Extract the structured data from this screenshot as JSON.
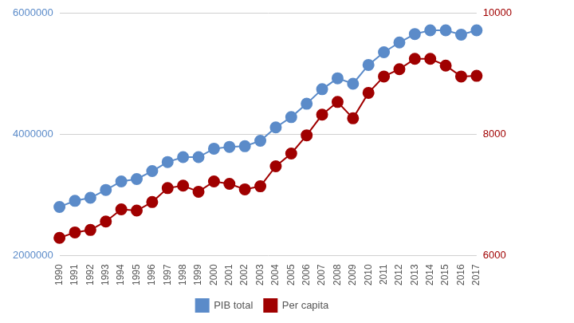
{
  "chart_data": {
    "type": "line",
    "categories": [
      "1990",
      "1991",
      "1992",
      "1993",
      "1994",
      "1995",
      "1996",
      "1997",
      "1998",
      "1999",
      "2000",
      "2001",
      "2002",
      "2003",
      "2004",
      "2005",
      "2006",
      "2007",
      "2008",
      "2009",
      "2010",
      "2011",
      "2012",
      "2013",
      "2014",
      "2015",
      "2016",
      "2017"
    ],
    "series": [
      {
        "name": "PIB total",
        "color": "#5b8bc9",
        "marker": "circle",
        "axis": "y",
        "values": [
          2800000,
          2900000,
          2950000,
          3080000,
          3220000,
          3260000,
          3390000,
          3540000,
          3620000,
          3620000,
          3760000,
          3790000,
          3800000,
          3890000,
          4110000,
          4280000,
          4500000,
          4740000,
          4920000,
          4830000,
          5140000,
          5350000,
          5510000,
          5650000,
          5710000,
          5710000,
          5640000,
          5710000
        ]
      },
      {
        "name": "Per capita",
        "color": "#a00000",
        "marker": "circle",
        "axis": "y2",
        "values": [
          6290,
          6380,
          6420,
          6560,
          6760,
          6740,
          6880,
          7110,
          7150,
          7050,
          7220,
          7180,
          7090,
          7140,
          7470,
          7680,
          7980,
          8320,
          8530,
          8260,
          8680,
          8950,
          9070,
          9240,
          9240,
          9130,
          8950,
          8960
        ]
      }
    ],
    "ylim": [
      2000000,
      6000000
    ],
    "yticks": [
      2000000,
      4000000,
      6000000
    ],
    "y2lim": [
      6000,
      10000
    ],
    "y2ticks": [
      6000,
      8000,
      10000
    ],
    "grid": true,
    "legend": "bottom"
  }
}
